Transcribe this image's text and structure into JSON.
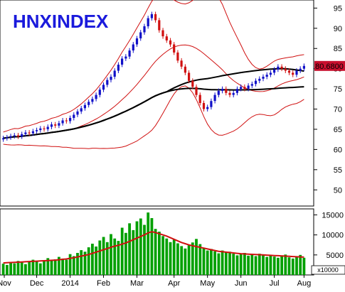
{
  "chart_data": {
    "type": "candlestick",
    "title": "HNXINDEX",
    "x_month_labels": [
      "Nov",
      "Dec",
      "2014",
      "Feb",
      "Mar",
      "Apr",
      "May",
      "Jun",
      "Jul",
      "Aug"
    ],
    "price_axis": {
      "ticks": [
        50,
        55,
        60,
        65,
        70,
        75,
        80,
        85,
        90,
        95
      ],
      "ylim": [
        46,
        97
      ],
      "last_value_label": "80.6800",
      "last_value": 80.68
    },
    "volume_axis": {
      "ticks": [
        5000,
        10000,
        15000
      ],
      "ylim": [
        0,
        16500
      ],
      "unit_label": "x10000"
    },
    "price_series": [
      62.8,
      63.0,
      63.3,
      63.5,
      63.2,
      63.8,
      64.2,
      64.0,
      64.5,
      64.8,
      65.2,
      65.0,
      65.6,
      66.2,
      65.9,
      66.5,
      67.2,
      67.0,
      67.8,
      68.6,
      69.4,
      70.2,
      71.0,
      71.8,
      72.5,
      73.5,
      74.8,
      76.0,
      77.2,
      78.0,
      79.5,
      81.0,
      82.5,
      83.0,
      84.5,
      86.0,
      87.5,
      89.0,
      90.5,
      92.5,
      93.5,
      92.0,
      89.5,
      88.0,
      87.0,
      86.0,
      84.0,
      82.0,
      80.5,
      79.0,
      77.0,
      75.5,
      73.5,
      71.5,
      70.0,
      70.5,
      72.0,
      73.5,
      74.5,
      75.0,
      74.0,
      73.5,
      74.0,
      75.0,
      75.5,
      75.0,
      75.8,
      76.2,
      77.0,
      77.5,
      78.0,
      78.5,
      79.0,
      79.8,
      80.5,
      80.0,
      79.5,
      79.0,
      78.5,
      79.5,
      80.0,
      80.68
    ],
    "volume_series": [
      2800,
      2500,
      3200,
      2900,
      3500,
      3100,
      2700,
      3300,
      3800,
      3400,
      2900,
      3700,
      4200,
      3600,
      3900,
      4500,
      4100,
      3800,
      5200,
      4700,
      5500,
      6200,
      5800,
      6900,
      7800,
      7100,
      8600,
      9500,
      8200,
      10200,
      9100,
      8500,
      11800,
      10500,
      12900,
      11200,
      13400,
      14100,
      12500,
      15600,
      14200,
      11500,
      10800,
      9700,
      9100,
      8200,
      8800,
      7900,
      7200,
      6600,
      7400,
      8100,
      9000,
      7700,
      6800,
      6100,
      6500,
      5900,
      5400,
      6100,
      5600,
      5800,
      5300,
      4900,
      5200,
      5500,
      4800,
      5100,
      4700,
      5300,
      4900,
      4500,
      5000,
      4600,
      4300,
      4900,
      5100,
      4400,
      4100,
      4600,
      5000,
      4300
    ],
    "volume_ma": [
      3000,
      3050,
      3100,
      3150,
      3200,
      3250,
      3300,
      3350,
      3400,
      3450,
      3500,
      3550,
      3600,
      3650,
      3700,
      3800,
      3900,
      4000,
      4150,
      4300,
      4500,
      4700,
      4900,
      5100,
      5400,
      5700,
      6000,
      6300,
      6600,
      6900,
      7200,
      7400,
      7700,
      8000,
      8400,
      8800,
      9200,
      9600,
      10000,
      10500,
      10800,
      10600,
      10300,
      10000,
      9700,
      9300,
      8900,
      8500,
      8100,
      7800,
      7500,
      7300,
      7100,
      6900,
      6700,
      6500,
      6300,
      6100,
      5900,
      5800,
      5700,
      5600,
      5500,
      5400,
      5300,
      5250,
      5200,
      5150,
      5100,
      5050,
      5000,
      4950,
      4900,
      4850,
      4800,
      4750,
      4700,
      4650,
      4600,
      4550,
      4500,
      4450
    ],
    "bands_visible": true,
    "moving_averages_visible": true,
    "grid": false
  }
}
